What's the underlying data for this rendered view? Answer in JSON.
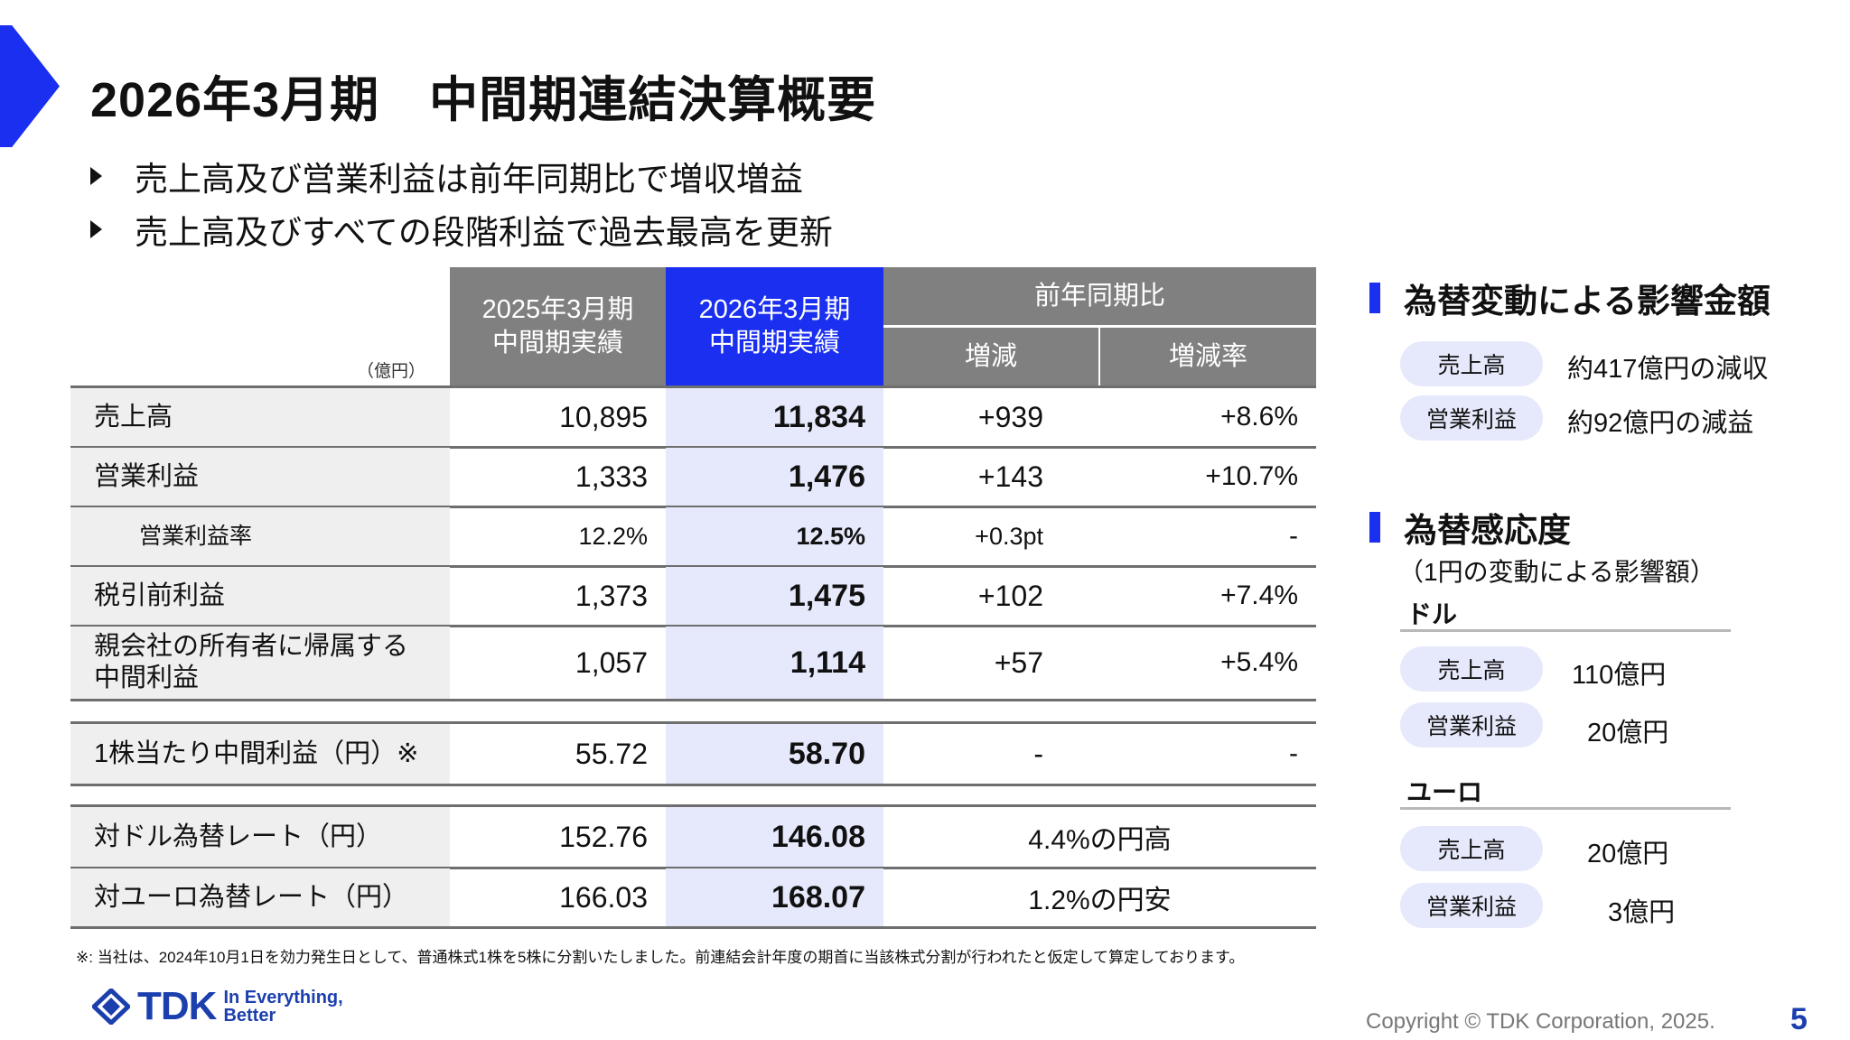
{
  "title": "2026年3月期　中間期連結決算概要",
  "bullets": [
    "売上高及び営業利益は前年同期比で増収増益",
    "売上高及びすべての段階利益で過去最高を更新"
  ],
  "colors": {
    "accent": "#1a2ff0",
    "header_gray": "#808080",
    "highlight": "#e5e9fb"
  },
  "table": {
    "unit": "（億円）",
    "headers": {
      "prev": "2025年3月期\n中間期実績",
      "curr": "2026年3月期\n中間期実績",
      "yoy": "前年同期比",
      "change": "増減",
      "rate": "増減率"
    },
    "rows": [
      {
        "label": "売上高",
        "prev": "10,895",
        "curr": "11,834",
        "change": "+939",
        "rate": "+8.6%"
      },
      {
        "label": "営業利益",
        "prev": "1,333",
        "curr": "1,476",
        "change": "+143",
        "rate": "+10.7%"
      },
      {
        "label": "営業利益率",
        "prev": "12.2%",
        "curr": "12.5%",
        "change": "+0.3pt",
        "rate": "-"
      },
      {
        "label": "税引前利益",
        "prev": "1,373",
        "curr": "1,475",
        "change": "+102",
        "rate": "+7.4%"
      },
      {
        "label": "親会社の所有者に帰属する\n中間利益",
        "prev": "1,057",
        "curr": "1,114",
        "change": "+57",
        "rate": "+5.4%"
      },
      {
        "label": "1株当たり中間利益（円）※",
        "prev": "55.72",
        "curr": "58.70",
        "change": "-",
        "rate": "-"
      },
      {
        "label": "対ドル為替レート（円）",
        "prev": "152.76",
        "curr": "146.08",
        "merged": "4.4%の円高"
      },
      {
        "label": "対ユーロ為替レート（円）",
        "prev": "166.03",
        "curr": "168.07",
        "merged": "1.2%の円安"
      }
    ]
  },
  "footnote": "※: 当社は、2024年10月1日を効力発生日として、普通株式1株を5株に分割いたしました。前連結会計年度の期首に当該株式分割が行われたと仮定して算定しております。",
  "fx_impact": {
    "title": "為替変動による影響金額",
    "items": [
      {
        "label": "売上高",
        "value": "約417億円の減収"
      },
      {
        "label": "営業利益",
        "value": "約92億円の減益"
      }
    ]
  },
  "fx_sensitivity": {
    "title": "為替感応度",
    "subtitle": "（1円の変動による影響額）",
    "usd": {
      "label": "ドル",
      "items": [
        {
          "label": "売上高",
          "value": "110億円"
        },
        {
          "label": "営業利益",
          "value": "20億円"
        }
      ]
    },
    "eur": {
      "label": "ユーロ",
      "items": [
        {
          "label": "売上高",
          "value": "20億円"
        },
        {
          "label": "営業利益",
          "value": "3億円"
        }
      ]
    }
  },
  "footer": {
    "logo": "TDK",
    "tagline": "In Everything,\nBetter",
    "copyright": "Copyright © TDK Corporation, 2025.",
    "page": "5"
  }
}
